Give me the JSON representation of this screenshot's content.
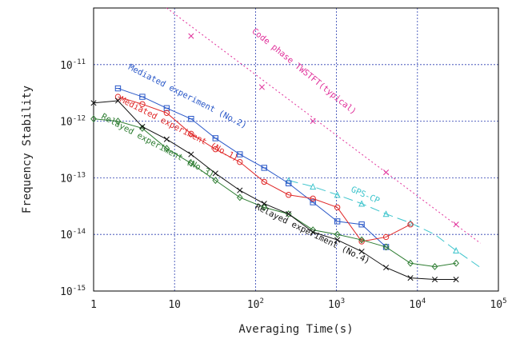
{
  "chart_data": {
    "type": "line",
    "xlabel": "Averaging Time(s)",
    "ylabel": "Frequency Stability",
    "xscale": "log",
    "yscale": "log",
    "xlim": [
      1,
      100000
    ],
    "ylim": [
      1e-15,
      1e-10
    ],
    "x_ticks": [
      {
        "base": "1",
        "exp": ""
      },
      {
        "base": "10",
        "exp": ""
      },
      {
        "base": "10",
        "exp": "2"
      },
      {
        "base": "10",
        "exp": "3"
      },
      {
        "base": "10",
        "exp": "4"
      },
      {
        "base": "10",
        "exp": "5"
      }
    ],
    "y_ticks": [
      {
        "base": "10",
        "exp": "-15"
      },
      {
        "base": "10",
        "exp": "-14"
      },
      {
        "base": "10",
        "exp": "-13"
      },
      {
        "base": "10",
        "exp": "-12"
      },
      {
        "base": "10",
        "exp": "-11"
      }
    ],
    "grid": true,
    "series": [
      {
        "name": "Code phase TWSTFT(typical)",
        "color": "#e0309a",
        "style": "dotted",
        "marker": "x",
        "x": [
          16,
          120,
          512,
          4096,
          30000
        ],
        "y": [
          3.2e-11,
          4e-12,
          1e-12,
          1.25e-13,
          1.5e-14
        ],
        "line_x": [
          8,
          60000
        ],
        "line_y": [
          1e-10,
          7e-15
        ]
      },
      {
        "name": "GPS-CP",
        "color": "#3cc4cc",
        "style": "dashed",
        "marker": "triangle",
        "x": [
          256,
          512,
          1024,
          2048,
          4096,
          8192,
          30000
        ],
        "y": [
          9e-14,
          7e-14,
          5e-14,
          3.5e-14,
          2.3e-14,
          1.6e-14,
          5.2e-15
        ],
        "line_x": [
          256,
          512,
          1024,
          2048,
          4096,
          8192,
          16384,
          30000,
          60000
        ],
        "line_y": [
          9e-14,
          7e-14,
          5e-14,
          3.5e-14,
          2.3e-14,
          1.6e-14,
          1e-14,
          5.2e-15,
          2.6e-15
        ]
      },
      {
        "name": "Mediated experiment (No.2)",
        "color": "#2a58c8",
        "style": "solid",
        "marker": "square",
        "x": [
          2,
          4,
          8,
          16,
          32,
          64,
          128,
          256,
          512,
          1024,
          2048,
          4096
        ],
        "y": [
          3.8e-12,
          2.7e-12,
          1.7e-12,
          1.1e-12,
          5e-13,
          2.6e-13,
          1.5e-13,
          8e-14,
          3.7e-14,
          1.7e-14,
          1.5e-14,
          6e-15
        ]
      },
      {
        "name": "Mediated experiment (No.1)",
        "color": "#e02828",
        "style": "solid",
        "marker": "circle",
        "x": [
          2,
          4,
          8,
          16,
          32,
          64,
          128,
          256,
          512,
          1024,
          2048,
          4096,
          8192
        ],
        "y": [
          2.7e-12,
          2e-12,
          1.4e-12,
          6e-13,
          3.2e-13,
          1.9e-13,
          8.5e-14,
          5e-14,
          4.3e-14,
          3e-14,
          7.5e-15,
          9e-15,
          1.5e-14
        ]
      },
      {
        "name": "Relayed experiment (No.3)",
        "color": "#2e7d32",
        "style": "solid",
        "marker": "diamond",
        "x": [
          1,
          2,
          4,
          8,
          16,
          32,
          64,
          128,
          256,
          512,
          1024,
          2048,
          4096,
          8192,
          16384,
          30000
        ],
        "y": [
          1.1e-12,
          1e-12,
          7.5e-13,
          3.3e-13,
          1.8e-13,
          9e-14,
          4.5e-14,
          3e-14,
          2.3e-14,
          1.2e-14,
          1e-14,
          8e-15,
          6e-15,
          3.1e-15,
          2.7e-15,
          3.1e-15
        ]
      },
      {
        "name": "Relayed experiment (No.4)",
        "color": "#111111",
        "style": "solid",
        "marker": "x",
        "x": [
          1,
          2,
          4,
          8,
          16,
          32,
          64,
          128,
          256,
          512,
          1024,
          2048,
          4096,
          8192,
          16384,
          30000
        ],
        "y": [
          2.1e-12,
          2.3e-12,
          8e-13,
          4.8e-13,
          2.6e-13,
          1.2e-13,
          6e-14,
          3.5e-14,
          2.3e-14,
          1.1e-14,
          8e-15,
          5e-15,
          2.6e-15,
          1.7e-15,
          1.6e-15,
          1.6e-15
        ]
      }
    ],
    "annotations": [
      {
        "text": "Code phase TWSTFT(typical)",
        "color": "#e0309a",
        "x": 380,
        "y": 7e-12,
        "angle": 39
      },
      {
        "text": "GPS-CP",
        "color": "#3cc4cc",
        "x": 2200,
        "y": 4.5e-14,
        "angle": 24
      },
      {
        "text": "Mediated experiment (No.2)",
        "color": "#2a58c8",
        "x": 14,
        "y": 2.5e-12,
        "angle": 27
      },
      {
        "text": "Mediated experiment (No.1)",
        "color": "#e02828",
        "x": 11,
        "y": 6.7e-13,
        "angle": 27
      },
      {
        "text": "Relayed experiment (No.3)",
        "color": "#2e7d32",
        "x": 6,
        "y": 3.4e-13,
        "angle": 28
      },
      {
        "text": "Relayed experiment (No.4)",
        "color": "#111111",
        "x": 490,
        "y": 9.3e-15,
        "angle": 26
      }
    ]
  }
}
